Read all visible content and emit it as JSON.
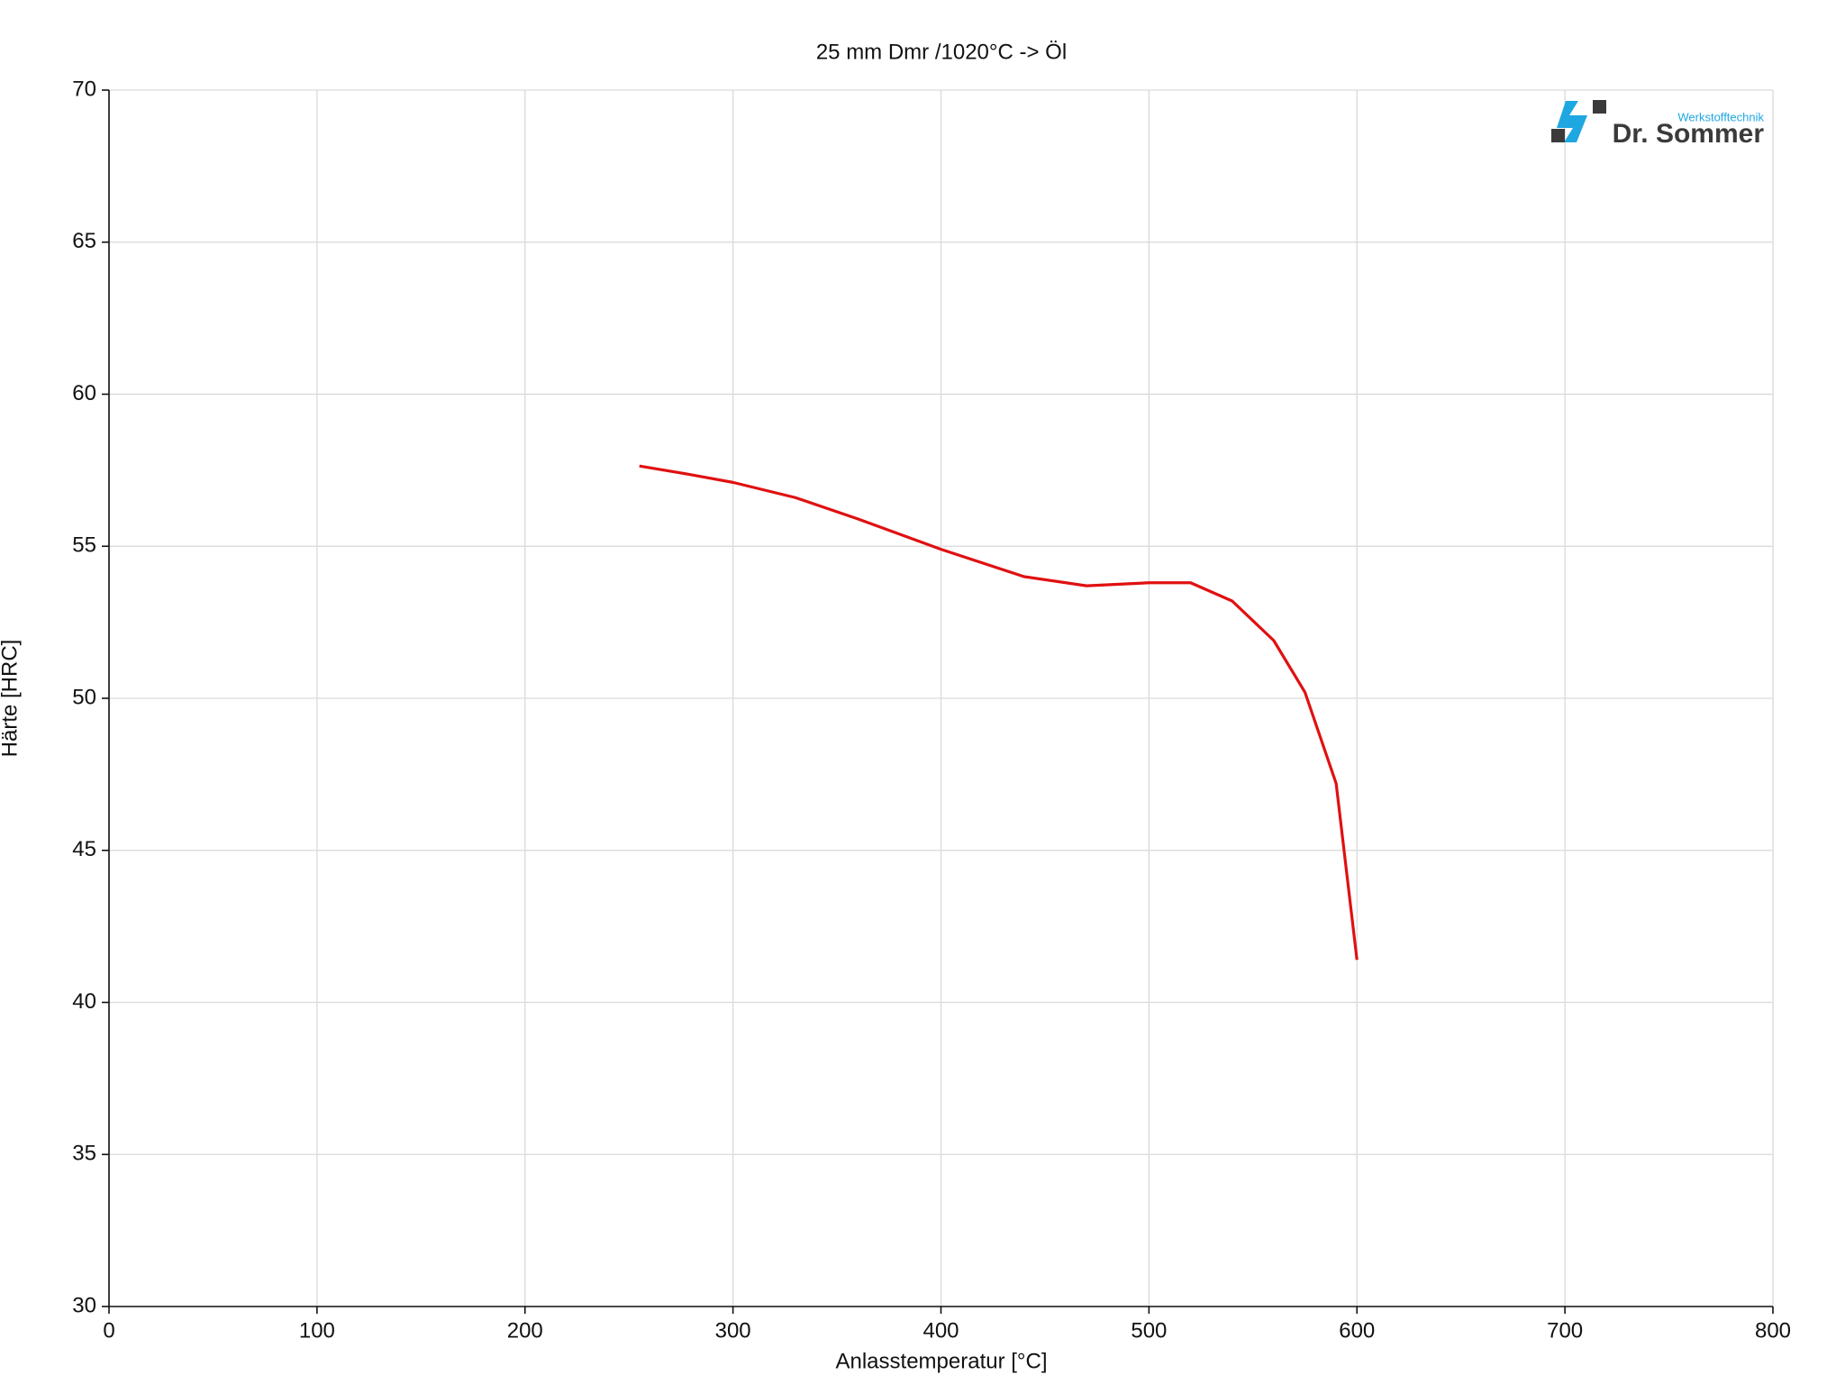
{
  "chart_data": {
    "type": "line",
    "title": "25 mm Dmr /1020°C -> Öl",
    "x_label": "Anlasstemperatur [°C]",
    "y_label": "Härte [HRC]",
    "annotations": [
      "Werkstofftechnik",
      "Dr. Sommer"
    ],
    "x": [
      255,
      280,
      300,
      330,
      360,
      400,
      440,
      470,
      500,
      520,
      540,
      560,
      575,
      590,
      600
    ],
    "series": [
      {
        "name": "25 mm Dmr",
        "color": "#e01010",
        "values": [
          57.64,
          57.35,
          57.1,
          56.6,
          55.9,
          54.9,
          54.0,
          53.7,
          53.8,
          53.8,
          53.2,
          51.9,
          50.2,
          47.2,
          41.4
        ]
      }
    ],
    "xlim": [
      0,
      800
    ],
    "ylim": [
      30,
      70
    ],
    "xticks": [
      0,
      100,
      200,
      300,
      400,
      500,
      600,
      700,
      800
    ],
    "yticks": [
      30,
      35,
      40,
      45,
      50,
      55,
      60,
      65,
      70
    ],
    "grid": true
  }
}
